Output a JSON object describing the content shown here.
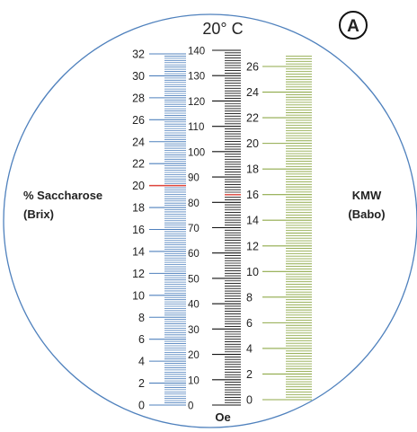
{
  "header": {
    "temperature": "20° C",
    "marker": "A"
  },
  "left_scale": {
    "title_line1": "% Saccharose",
    "title_line2": "(Brix)",
    "ticks": [
      "0",
      "2",
      "4",
      "6",
      "8",
      "10",
      "12",
      "14",
      "16",
      "18",
      "20",
      "22",
      "24",
      "26",
      "28",
      "30",
      "32"
    ],
    "color": "#4f81bd"
  },
  "middle_scale": {
    "unit": "Oe",
    "ticks": [
      "0",
      "10",
      "20",
      "30",
      "40",
      "50",
      "60",
      "70",
      "80",
      "90",
      "100",
      "110",
      "120",
      "130",
      "140"
    ],
    "color": "#111111"
  },
  "right_scale": {
    "title_line1": "KMW",
    "title_line2": "(Babo)",
    "ticks": [
      "0",
      "2",
      "4",
      "6",
      "8",
      "10",
      "12",
      "14",
      "16",
      "18",
      "20",
      "22",
      "24",
      "26"
    ],
    "color": "#8faa4a"
  },
  "reference_line": {
    "brix": 20,
    "oechsle": 83,
    "color": "#e0463c"
  },
  "circle_color": "#4f81bd"
}
